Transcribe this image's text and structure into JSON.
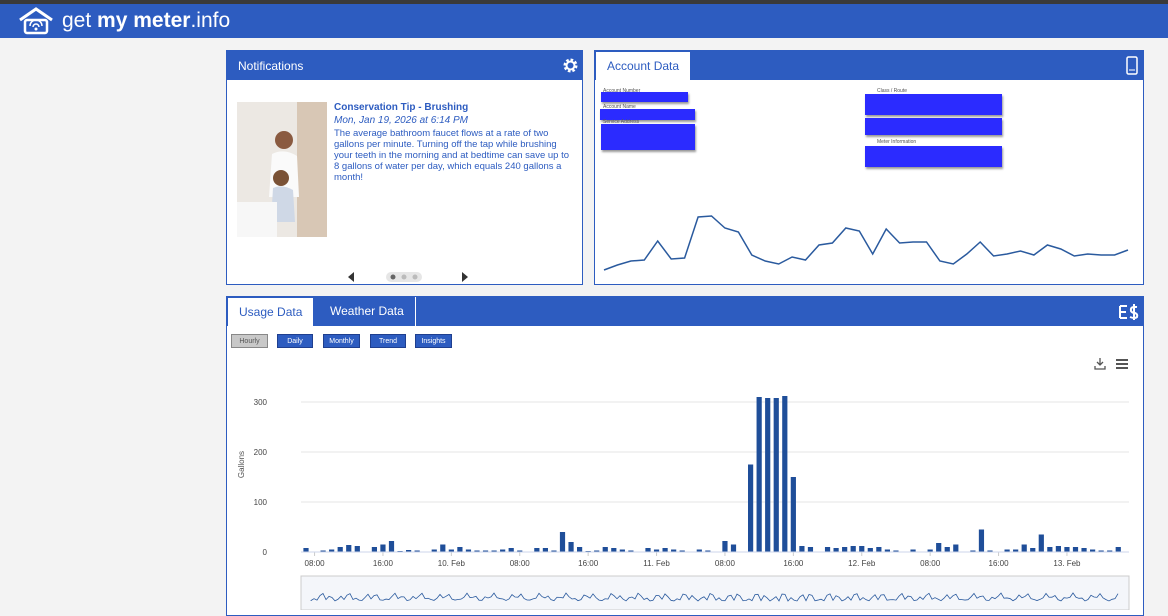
{
  "header": {
    "logo": {
      "get": "get",
      "my": "my",
      "meter": "meter",
      "info": ".info"
    }
  },
  "notifications": {
    "title": "Notifications",
    "item": {
      "title": "Conservation Tip - Brushing",
      "date": "Mon, Jan 19, 2026 at 6:14 PM",
      "body": "The average bathroom faucet flows at a rate of two gallons per minute. Turning off the tap while brushing your teeth in the morning and at bedtime can save up to 8 gallons of water per day, which equals 240 gallons a month!"
    }
  },
  "account_data": {
    "tab": "Account Data",
    "fields": [
      "Account Number",
      "Account Name",
      "Service Address",
      "Class / Route",
      "Meter Information"
    ]
  },
  "usage": {
    "tabs": [
      "Usage Data",
      "Weather Data"
    ],
    "buttons": [
      "Hourly",
      "Daily",
      "Monthly",
      "Trend",
      "Insights"
    ]
  },
  "chart_data": [
    {
      "type": "bar",
      "ylabel": "Gallons",
      "color": "#1f4e99",
      "grid": true,
      "ylim": [
        0,
        350
      ],
      "yticks": [
        0,
        100,
        200,
        300
      ],
      "categories": [
        null,
        "08:00",
        null,
        null,
        null,
        null,
        null,
        null,
        null,
        "16:00",
        null,
        null,
        null,
        null,
        null,
        null,
        null,
        "10. Feb",
        null,
        null,
        null,
        null,
        null,
        null,
        null,
        "08:00",
        null,
        null,
        null,
        null,
        null,
        null,
        null,
        "16:00",
        null,
        null,
        null,
        null,
        null,
        null,
        null,
        "11. Feb",
        null,
        null,
        null,
        null,
        null,
        null,
        null,
        "08:00",
        null,
        null,
        null,
        null,
        null,
        null,
        null,
        "16:00",
        null,
        null,
        null,
        null,
        null,
        null,
        null,
        "12. Feb",
        null,
        null,
        null,
        null,
        null,
        null,
        null,
        "08:00",
        null,
        null,
        null,
        null,
        null,
        null,
        null,
        "16:00",
        null,
        null,
        null,
        null,
        null,
        null,
        null,
        "13. Feb",
        null,
        null,
        null,
        null,
        null,
        null
      ],
      "values": [
        8,
        0,
        3,
        5,
        10,
        14,
        12,
        0,
        10,
        15,
        22,
        2,
        4,
        3,
        0,
        5,
        15,
        5,
        10,
        5,
        3,
        3,
        3,
        5,
        8,
        3,
        0,
        8,
        8,
        3,
        40,
        20,
        10,
        2,
        3,
        10,
        8,
        5,
        3,
        0,
        8,
        5,
        8,
        5,
        3,
        0,
        5,
        3,
        0,
        22,
        15,
        0,
        175,
        310,
        308,
        308,
        312,
        150,
        12,
        10,
        0,
        10,
        8,
        10,
        12,
        12,
        8,
        10,
        5,
        3,
        0,
        5,
        0,
        5,
        18,
        10,
        15,
        0,
        3,
        45,
        3,
        0,
        5,
        5,
        15,
        8,
        35,
        10,
        12,
        10,
        10,
        8,
        5,
        3,
        3,
        10
      ]
    },
    {
      "type": "line",
      "color": "#2a5a9e",
      "ylim": [
        0,
        70
      ],
      "values": [
        10,
        15,
        19,
        20,
        39,
        21,
        22,
        63,
        64,
        52,
        48,
        25,
        19,
        16,
        23,
        20,
        35,
        37,
        52,
        49,
        26,
        51,
        37,
        38,
        38,
        19,
        16,
        26,
        38,
        24,
        26,
        29,
        25,
        35,
        31,
        24,
        26,
        25,
        25,
        30
      ]
    }
  ]
}
